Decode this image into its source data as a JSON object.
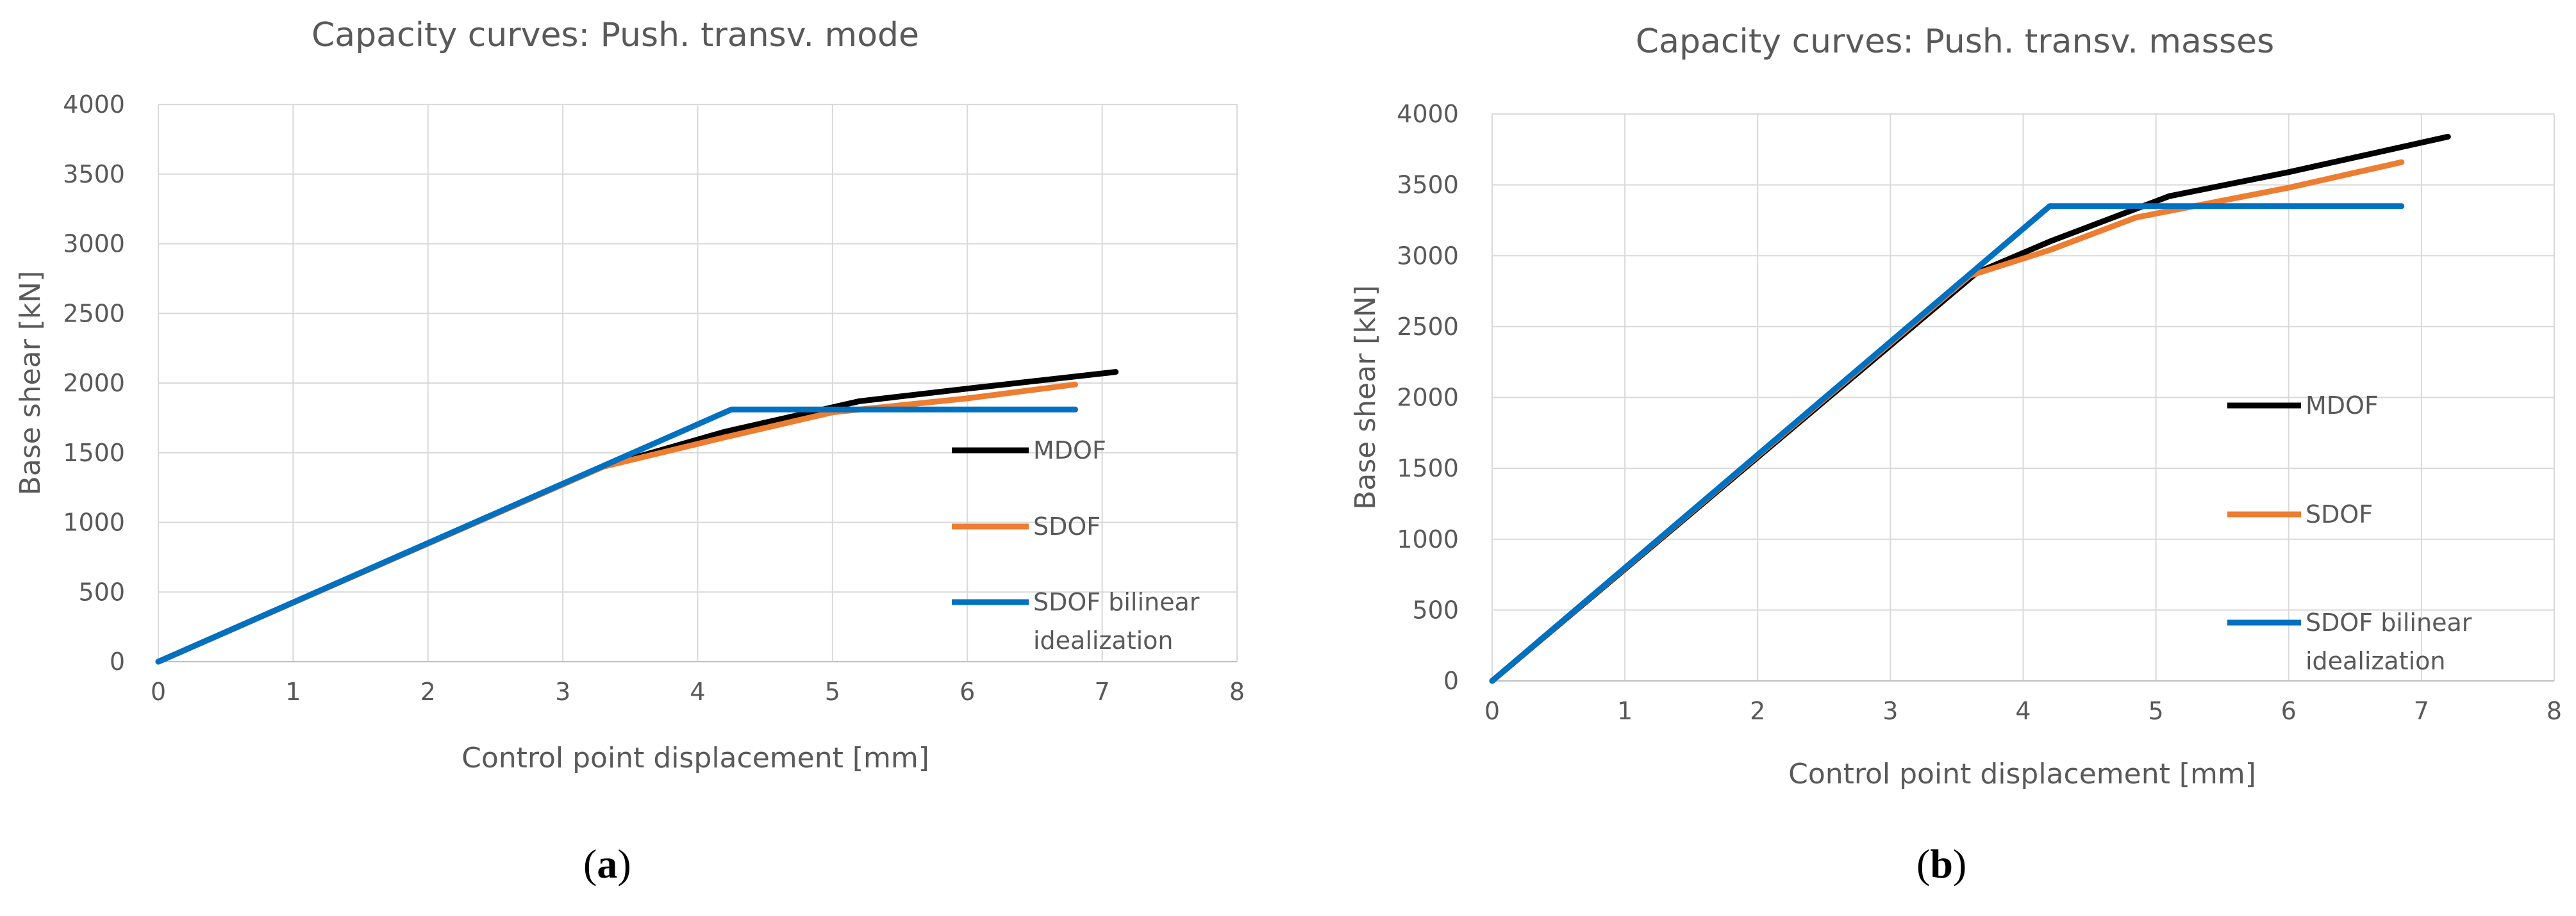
{
  "chart_data": [
    {
      "type": "line",
      "title": "Capacity curves: Push. transv. mode",
      "xlabel": "Control point displacement [mm]",
      "ylabel": "Base shear [kN]",
      "xlim": [
        0,
        8
      ],
      "ylim": [
        0,
        4000
      ],
      "xticks": [
        0,
        1,
        2,
        3,
        4,
        5,
        6,
        7,
        8
      ],
      "yticks": [
        0,
        500,
        1000,
        1500,
        2000,
        2500,
        3000,
        3500,
        4000
      ],
      "xtick_labels": [
        "0",
        "1",
        "2",
        "3",
        "4",
        "5",
        "6",
        "7",
        "8"
      ],
      "ytick_labels": [
        "0",
        "500",
        "1000",
        "1500",
        "2000",
        "2500",
        "3000",
        "3500",
        "4000"
      ],
      "grid": true,
      "legend_position": "right",
      "series": [
        {
          "name": "MDOF",
          "label_lines": [
            "MDOF"
          ],
          "color": "#000000",
          "points": [
            [
              0,
              0
            ],
            [
              3.3,
              1400
            ],
            [
              4.2,
              1650
            ],
            [
              5.2,
              1870
            ],
            [
              6.0,
              1960
            ],
            [
              7.1,
              2080
            ]
          ]
        },
        {
          "name": "SDOF",
          "label_lines": [
            "SDOF"
          ],
          "color": "#ed7d31",
          "points": [
            [
              0,
              0
            ],
            [
              3.3,
              1400
            ],
            [
              4.2,
              1610
            ],
            [
              5.0,
              1790
            ],
            [
              6.0,
              1890
            ],
            [
              6.8,
              1990
            ]
          ]
        },
        {
          "name": "SDOF bilinear idealization",
          "label_lines": [
            "SDOF bilinear",
            "idealization"
          ],
          "color": "#0070c0",
          "points": [
            [
              0,
              0
            ],
            [
              4.25,
              1810
            ],
            [
              6.8,
              1810
            ]
          ]
        }
      ]
    },
    {
      "type": "line",
      "title": "Capacity curves: Push. transv. masses",
      "xlabel": "Control point displacement [mm]",
      "ylabel": "Base shear [kN]",
      "xlim": [
        0,
        8
      ],
      "ylim": [
        0,
        4000
      ],
      "xticks": [
        0,
        1,
        2,
        3,
        4,
        5,
        6,
        7,
        8
      ],
      "yticks": [
        0,
        500,
        1000,
        1500,
        2000,
        2500,
        3000,
        3500,
        4000
      ],
      "xtick_labels": [
        "0",
        "1",
        "2",
        "3",
        "4",
        "5",
        "6",
        "7",
        "8"
      ],
      "ytick_labels": [
        "0",
        "500",
        "1000",
        "1500",
        "2000",
        "2500",
        "3000",
        "3500",
        "4000"
      ],
      "grid": true,
      "legend_position": "right",
      "series": [
        {
          "name": "MDOF",
          "label_lines": [
            "MDOF"
          ],
          "color": "#000000",
          "points": [
            [
              0,
              0
            ],
            [
              3.65,
              2880
            ],
            [
              4.2,
              3100
            ],
            [
              5.1,
              3420
            ],
            [
              6.0,
              3590
            ],
            [
              7.2,
              3840
            ]
          ]
        },
        {
          "name": "SDOF",
          "label_lines": [
            "SDOF"
          ],
          "color": "#ed7d31",
          "points": [
            [
              0,
              0
            ],
            [
              3.6,
              2860
            ],
            [
              4.2,
              3040
            ],
            [
              4.85,
              3270
            ],
            [
              6.0,
              3480
            ],
            [
              6.85,
              3660
            ]
          ]
        },
        {
          "name": "SDOF bilinear idealization",
          "label_lines": [
            "SDOF bilinear",
            "idealization"
          ],
          "color": "#0070c0",
          "points": [
            [
              0,
              0
            ],
            [
              4.2,
              3350
            ],
            [
              6.85,
              3350
            ]
          ]
        }
      ]
    }
  ],
  "captions": [
    {
      "letter": "a",
      "open": "(",
      "close": ")"
    },
    {
      "letter": "b",
      "open": "(",
      "close": ")"
    }
  ]
}
